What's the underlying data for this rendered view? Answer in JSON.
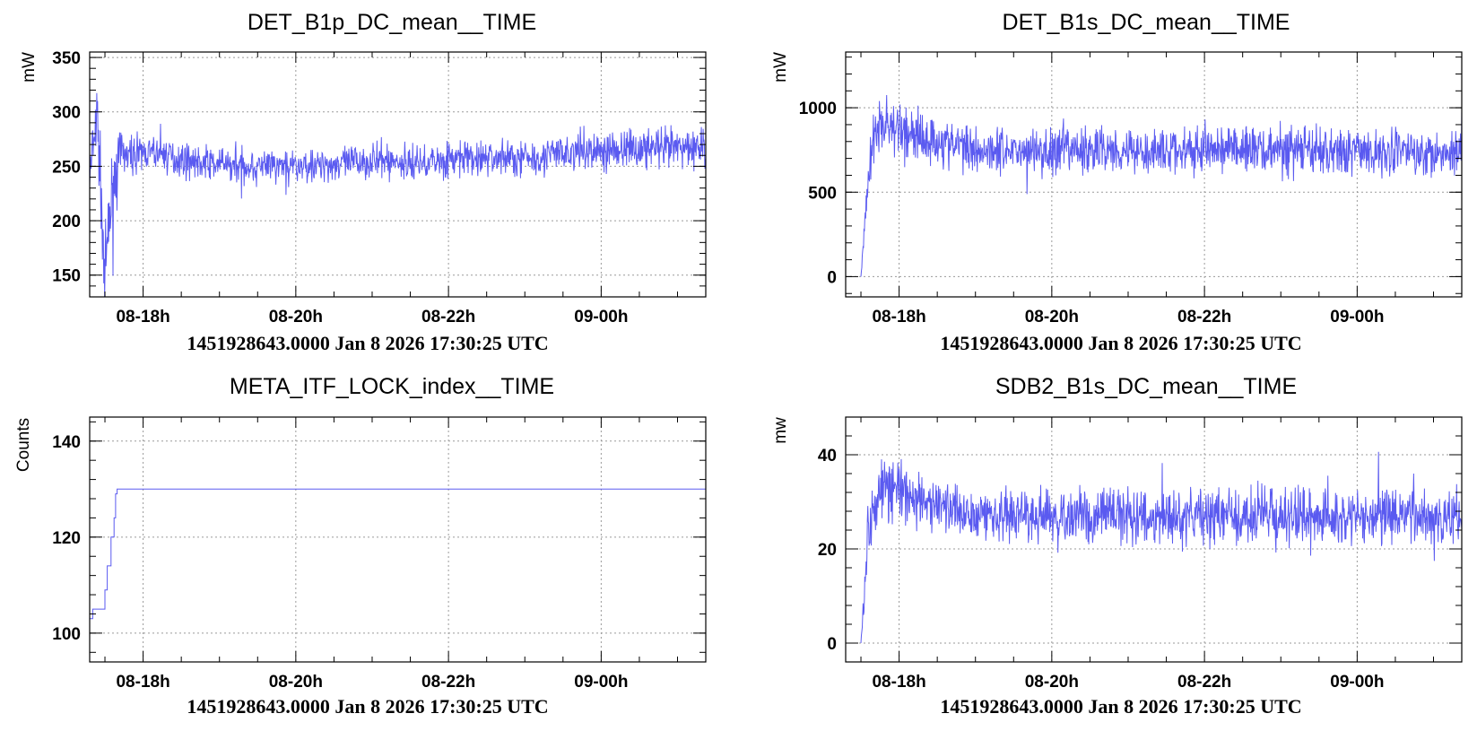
{
  "colors": {
    "series": "#5a5af0",
    "grid": "#9a9a9a",
    "axis": "#000000"
  },
  "chart_data": [
    {
      "type": "line",
      "title": "DET_B1p_DC_mean__TIME",
      "ylabel": "mW",
      "footer": "1451928643.0000 Jan 8 2026 17:30:25 UTC",
      "xlim": [
        17.3,
        25.37
      ],
      "ylim": [
        130,
        355
      ],
      "x_ticks": [
        {
          "v": 18,
          "label": "08-18h"
        },
        {
          "v": 20,
          "label": "08-20h"
        },
        {
          "v": 22,
          "label": "08-22h"
        },
        {
          "v": 24,
          "label": "09-00h"
        }
      ],
      "y_ticks": [
        {
          "v": 150,
          "label": "150"
        },
        {
          "v": 200,
          "label": "200"
        },
        {
          "v": 250,
          "label": "250"
        },
        {
          "v": 300,
          "label": "300"
        },
        {
          "v": 350,
          "label": "350"
        }
      ],
      "x": [
        17.3,
        17.4,
        17.5,
        17.6,
        17.7,
        17.8,
        17.9,
        18.2,
        18.6,
        19.0,
        19.5,
        20.0,
        20.5,
        21.0,
        21.5,
        22.0,
        22.5,
        23.0,
        23.5,
        24.0,
        24.5,
        25.0,
        25.37
      ],
      "y": [
        240,
        295,
        150,
        230,
        265,
        258,
        262,
        262,
        255,
        252,
        250,
        250,
        252,
        255,
        253,
        256,
        258,
        258,
        262,
        265,
        266,
        266,
        268
      ],
      "amp": [
        20,
        30,
        30,
        25,
        15,
        12,
        12,
        12,
        12,
        12,
        13,
        12,
        12,
        13,
        13,
        13,
        14,
        14,
        14,
        14,
        14,
        15,
        15
      ]
    },
    {
      "type": "line",
      "title": "DET_B1s_DC_mean__TIME",
      "ylabel": "mW",
      "footer": "1451928643.0000 Jan 8 2026 17:30:25 UTC",
      "xlim": [
        17.3,
        25.37
      ],
      "ylim": [
        -120,
        1330
      ],
      "x_ticks": [
        {
          "v": 18,
          "label": "08-18h"
        },
        {
          "v": 20,
          "label": "08-20h"
        },
        {
          "v": 22,
          "label": "08-22h"
        },
        {
          "v": 24,
          "label": "09-00h"
        }
      ],
      "y_ticks": [
        {
          "v": 0,
          "label": "0"
        },
        {
          "v": 500,
          "label": "500"
        },
        {
          "v": 1000,
          "label": "1000"
        }
      ],
      "x": [
        17.5,
        17.55,
        17.6,
        17.7,
        17.8,
        18.0,
        18.3,
        18.7,
        19.0,
        19.5,
        20.0,
        20.5,
        21.0,
        21.5,
        22.0,
        22.5,
        23.0,
        23.5,
        24.0,
        24.5,
        25.0,
        25.37
      ],
      "y": [
        0,
        300,
        650,
        850,
        900,
        870,
        820,
        780,
        760,
        750,
        740,
        750,
        760,
        740,
        750,
        760,
        750,
        740,
        745,
        745,
        740,
        745
      ],
      "amp": [
        0,
        60,
        120,
        140,
        150,
        140,
        120,
        115,
        110,
        110,
        115,
        110,
        110,
        115,
        110,
        110,
        110,
        110,
        110,
        110,
        110,
        110
      ]
    },
    {
      "type": "line",
      "title": "META_ITF_LOCK_index__TIME",
      "ylabel": "Counts",
      "footer": "1451928643.0000 Jan 8 2026 17:30:25 UTC",
      "xlim": [
        17.3,
        25.37
      ],
      "ylim": [
        94,
        145
      ],
      "x_ticks": [
        {
          "v": 18,
          "label": "08-18h"
        },
        {
          "v": 20,
          "label": "08-20h"
        },
        {
          "v": 22,
          "label": "08-22h"
        },
        {
          "v": 24,
          "label": "09-00h"
        }
      ],
      "y_ticks": [
        {
          "v": 100,
          "label": "100"
        },
        {
          "v": 120,
          "label": "120"
        },
        {
          "v": 140,
          "label": "140"
        }
      ],
      "step_x": [
        17.3,
        17.34,
        17.5,
        17.53,
        17.58,
        17.62,
        17.64,
        17.66,
        25.37
      ],
      "step_y": [
        103,
        105,
        109,
        114,
        120,
        124,
        129,
        130,
        130
      ]
    },
    {
      "type": "line",
      "title": "SDB2_B1s_DC_mean__TIME",
      "ylabel": "mw",
      "footer": "1451928643.0000 Jan 8 2026 17:30:25 UTC",
      "xlim": [
        17.3,
        25.37
      ],
      "ylim": [
        -4,
        48
      ],
      "x_ticks": [
        {
          "v": 18,
          "label": "08-18h"
        },
        {
          "v": 20,
          "label": "08-20h"
        },
        {
          "v": 22,
          "label": "08-22h"
        },
        {
          "v": 24,
          "label": "09-00h"
        }
      ],
      "y_ticks": [
        {
          "v": 0,
          "label": "0"
        },
        {
          "v": 20,
          "label": "20"
        },
        {
          "v": 40,
          "label": "40"
        }
      ],
      "x": [
        17.5,
        17.55,
        17.6,
        17.7,
        17.8,
        18.0,
        18.3,
        18.7,
        19.0,
        19.5,
        20.0,
        20.5,
        21.0,
        21.5,
        22.0,
        22.5,
        23.0,
        23.5,
        24.0,
        24.5,
        25.0,
        25.37
      ],
      "y": [
        0,
        12,
        25,
        32,
        33,
        32,
        30,
        28,
        28,
        27,
        26,
        27,
        28,
        26,
        27,
        27,
        27,
        26,
        27,
        27,
        27,
        27
      ],
      "amp": [
        0,
        3,
        5,
        6,
        6,
        5,
        4.5,
        4.5,
        4.5,
        4.5,
        4.5,
        4.5,
        4.5,
        4.5,
        4.5,
        4.5,
        4.5,
        4.5,
        4.5,
        4.5,
        4.5,
        4.5
      ]
    }
  ]
}
